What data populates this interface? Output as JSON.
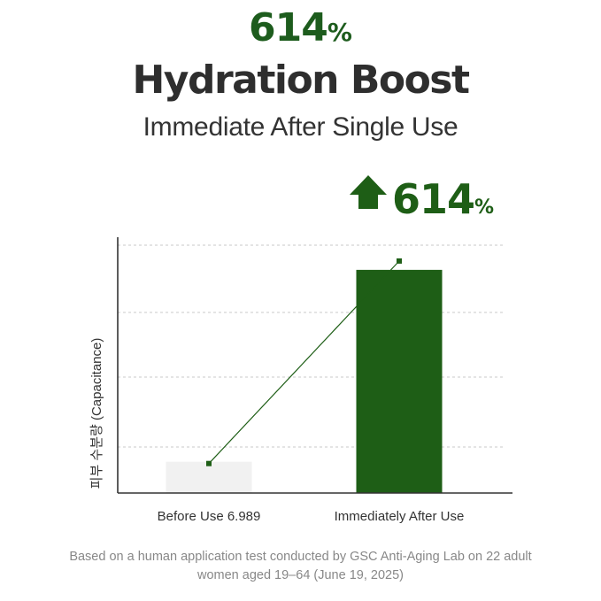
{
  "header": {
    "percent_value": "614",
    "percent_sign": "%",
    "title": "Hydration Boost",
    "subtitle": "Immediate After Single Use"
  },
  "chart_data": {
    "type": "bar",
    "categories": [
      "Before Use 6.989",
      "Immediately After Use"
    ],
    "values": [
      6.989,
      49.9
    ],
    "ylabel": "피부 수분량 (Capacitance)",
    "xlabel": "",
    "ylim": [
      0,
      57.2
    ],
    "grid": true,
    "bar_colors": [
      "#f1f1f1",
      "#1e5e16"
    ],
    "trend_line": true,
    "annotation": {
      "value": "614",
      "suffix": "%",
      "icon": "up-arrow-icon",
      "color": "#1e5e16"
    }
  },
  "footnote": "Based on a human application test conducted by GSC Anti-Aging Lab on 22 adult women aged 19–64 (June 19, 2025)",
  "colors": {
    "accent_green": "#1d5c1d",
    "bar_before": "#f1f1f1",
    "bar_after": "#1e5e16",
    "text_dark": "#2e2e2e",
    "text_muted": "#888888"
  }
}
